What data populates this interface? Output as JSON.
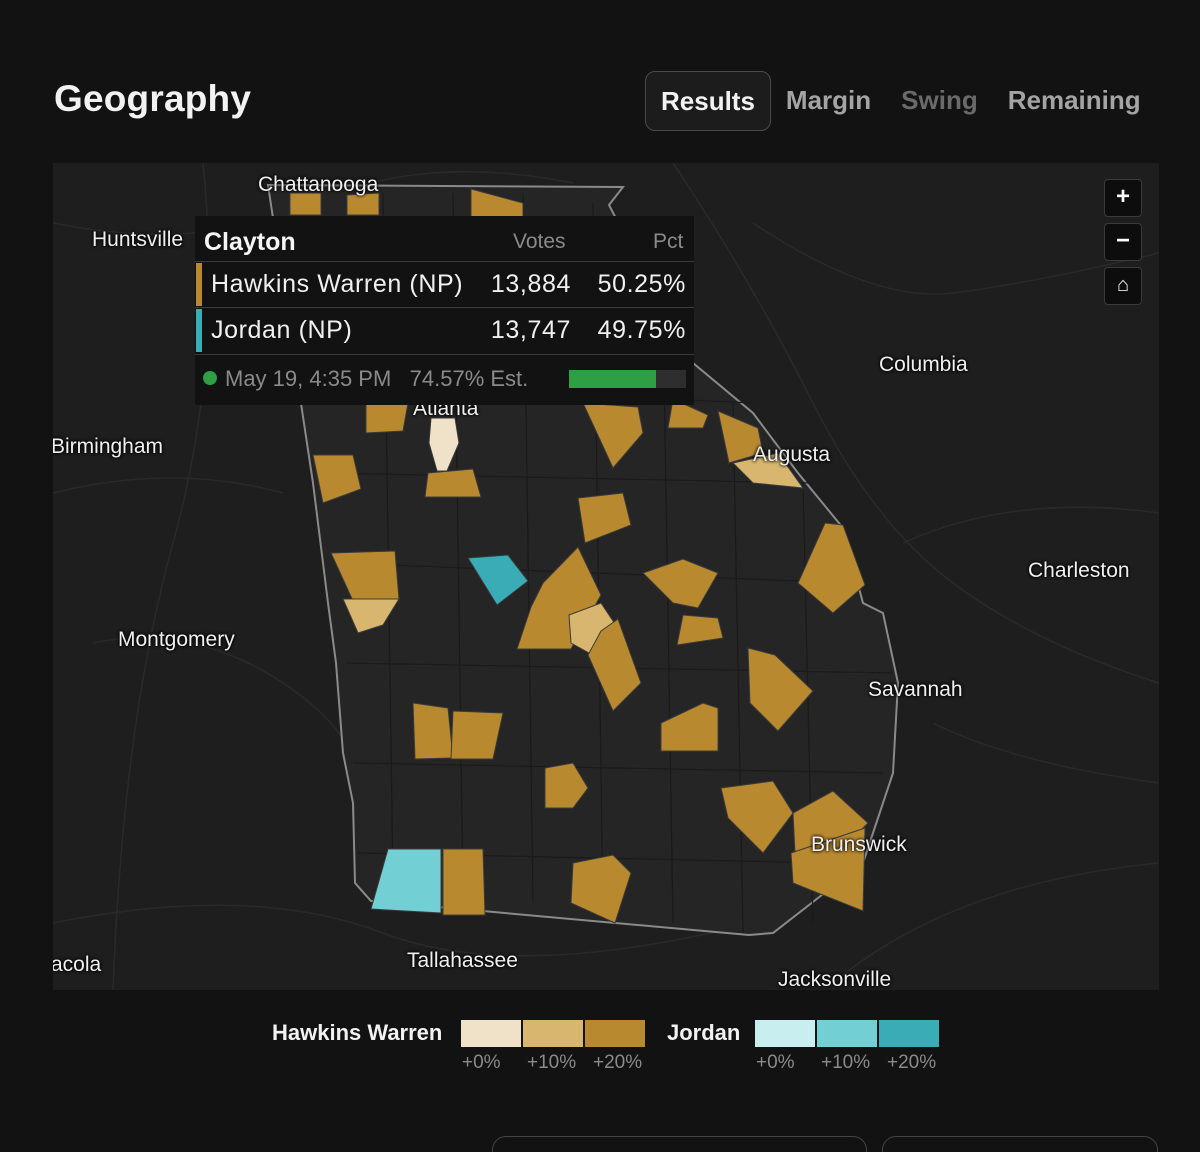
{
  "header": {
    "title": "Geography"
  },
  "tabs": [
    {
      "label": "Results",
      "state": "active"
    },
    {
      "label": "Margin",
      "state": "normal"
    },
    {
      "label": "Swing",
      "state": "disabled"
    },
    {
      "label": "Remaining",
      "state": "normal"
    }
  ],
  "map": {
    "cities": {
      "chattanooga": "Chattanooga",
      "huntsville": "Huntsville",
      "columbia": "Columbia",
      "atlanta": "Atlanta",
      "birmingham": "Birmingham",
      "augusta": "Augusta",
      "charleston": "Charleston",
      "montgomery": "Montgomery",
      "savannah": "Savannah",
      "brunswick": "Brunswick",
      "pensacola": "acola",
      "tallahassee": "Tallahassee",
      "jacksonville": "Jacksonville"
    },
    "controls": {
      "zoom_in": "+",
      "zoom_out": "−",
      "home": "⌂"
    }
  },
  "tooltip": {
    "county": "Clayton",
    "col_votes": "Votes",
    "col_pct": "Pct",
    "rows": [
      {
        "name": "Hawkins Warren (NP)",
        "votes": "13,884",
        "pct": "50.25%",
        "color": "#b8892f"
      },
      {
        "name": "Jordan (NP)",
        "votes": "13,747",
        "pct": "49.75%",
        "color": "#3aacb6"
      }
    ],
    "updated": "May 19, 4:35 PM",
    "estimate": "74.57% Est.",
    "reporting_fraction": 0.7457
  },
  "legend": {
    "candidate_a": {
      "name": "Hawkins Warren",
      "ticks": [
        "+0%",
        "+10%",
        "+20%"
      ],
      "colors": [
        "#efe2c8",
        "#d8b66f",
        "#b8892f"
      ]
    },
    "candidate_b": {
      "name": "Jordan",
      "ticks": [
        "+0%",
        "+10%",
        "+20%"
      ],
      "colors": [
        "#c9eef0",
        "#72cfd4",
        "#3aacb6"
      ]
    }
  },
  "colors": {
    "hawkins_warren": "#b8892f",
    "jordan": "#3aacb6",
    "background": "#121212"
  }
}
